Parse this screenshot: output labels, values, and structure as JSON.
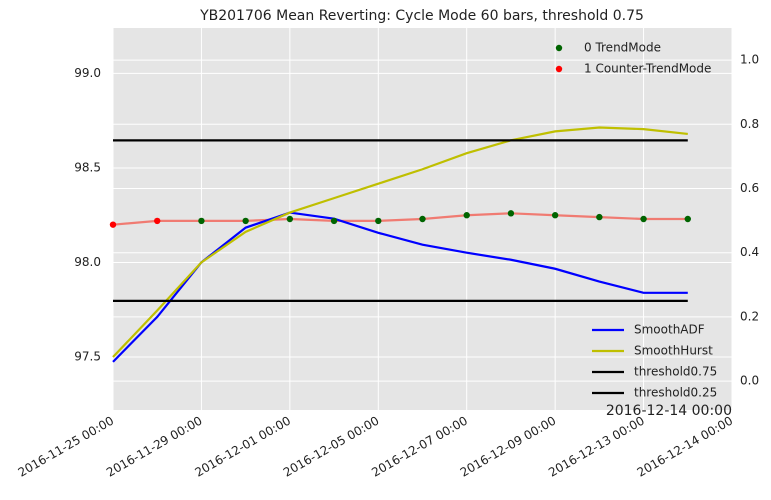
{
  "chart_data": {
    "type": "line",
    "title": "YB201706 Mean Reverting: Cycle Mode 60 bars, threshold 0.75",
    "annotation": "2016-12-14 00:00",
    "x": [
      0,
      1,
      2,
      3,
      4,
      5,
      6,
      7,
      8,
      9,
      10,
      11,
      12,
      13
    ],
    "xlim": [
      0,
      14
    ],
    "xticks": [
      {
        "value": 0,
        "label": "2016-11-25 00:00"
      },
      {
        "value": 2,
        "label": "2016-11-29 00:00"
      },
      {
        "value": 4,
        "label": "2016-12-01 00:00"
      },
      {
        "value": 6,
        "label": "2016-12-05 00:00"
      },
      {
        "value": 8,
        "label": "2016-12-07 00:00"
      },
      {
        "value": 10,
        "label": "2016-12-09 00:00"
      },
      {
        "value": 12,
        "label": "2016-12-13 00:00"
      },
      {
        "value": 14,
        "label": "2016-12-14 00:00"
      }
    ],
    "ylim": [
      97.22,
      99.24
    ],
    "yticks": [
      97.5,
      {
        "value": 98,
        "label": "98.0"
      },
      98.5,
      {
        "value": 99,
        "label": "99.0"
      }
    ],
    "y2lim": [
      -0.09,
      1.1
    ],
    "y2ticks": [
      {
        "value": 0,
        "label": "0.0"
      },
      0.2,
      0.4,
      0.6,
      0.8,
      {
        "value": 1,
        "label": "1.0"
      }
    ],
    "grid": true,
    "price": {
      "color": "#f07b72",
      "values": [
        98.2,
        98.22,
        98.22,
        98.22,
        98.23,
        98.22,
        98.22,
        98.23,
        98.25,
        98.26,
        98.25,
        98.24,
        98.23,
        98.23
      ],
      "modes": [
        1,
        1,
        0,
        0,
        0,
        0,
        0,
        0,
        0,
        0,
        0,
        0,
        0,
        0
      ]
    },
    "mode_legend": [
      {
        "name": "0 TrendMode",
        "color": "#006400"
      },
      {
        "name": "1 Counter-TrendMode",
        "color": "#ff0000"
      }
    ],
    "series": [
      {
        "name": "SmoothADF",
        "color": "#0000ff",
        "axis": "y2",
        "values": [
          0.06,
          0.2,
          0.37,
          0.478,
          0.525,
          0.506,
          0.462,
          0.425,
          0.4,
          0.378,
          0.35,
          0.31,
          0.275,
          0.275
        ]
      },
      {
        "name": "SmoothHurst",
        "color": "#bfbf00",
        "axis": "y2",
        "values": [
          0.075,
          0.22,
          0.37,
          0.465,
          0.525,
          0.57,
          0.615,
          0.66,
          0.71,
          0.75,
          0.778,
          0.79,
          0.785,
          0.77
        ]
      },
      {
        "name": "threshold0.75",
        "color": "#000000",
        "axis": "y2",
        "values": [
          0.75,
          0.75,
          0.75,
          0.75,
          0.75,
          0.75,
          0.75,
          0.75,
          0.75,
          0.75,
          0.75,
          0.75,
          0.75,
          0.75
        ]
      },
      {
        "name": "threshold0.25",
        "color": "#000000",
        "axis": "y2",
        "values": [
          0.25,
          0.25,
          0.25,
          0.25,
          0.25,
          0.25,
          0.25,
          0.25,
          0.25,
          0.25,
          0.25,
          0.25,
          0.25,
          0.25
        ]
      }
    ]
  }
}
